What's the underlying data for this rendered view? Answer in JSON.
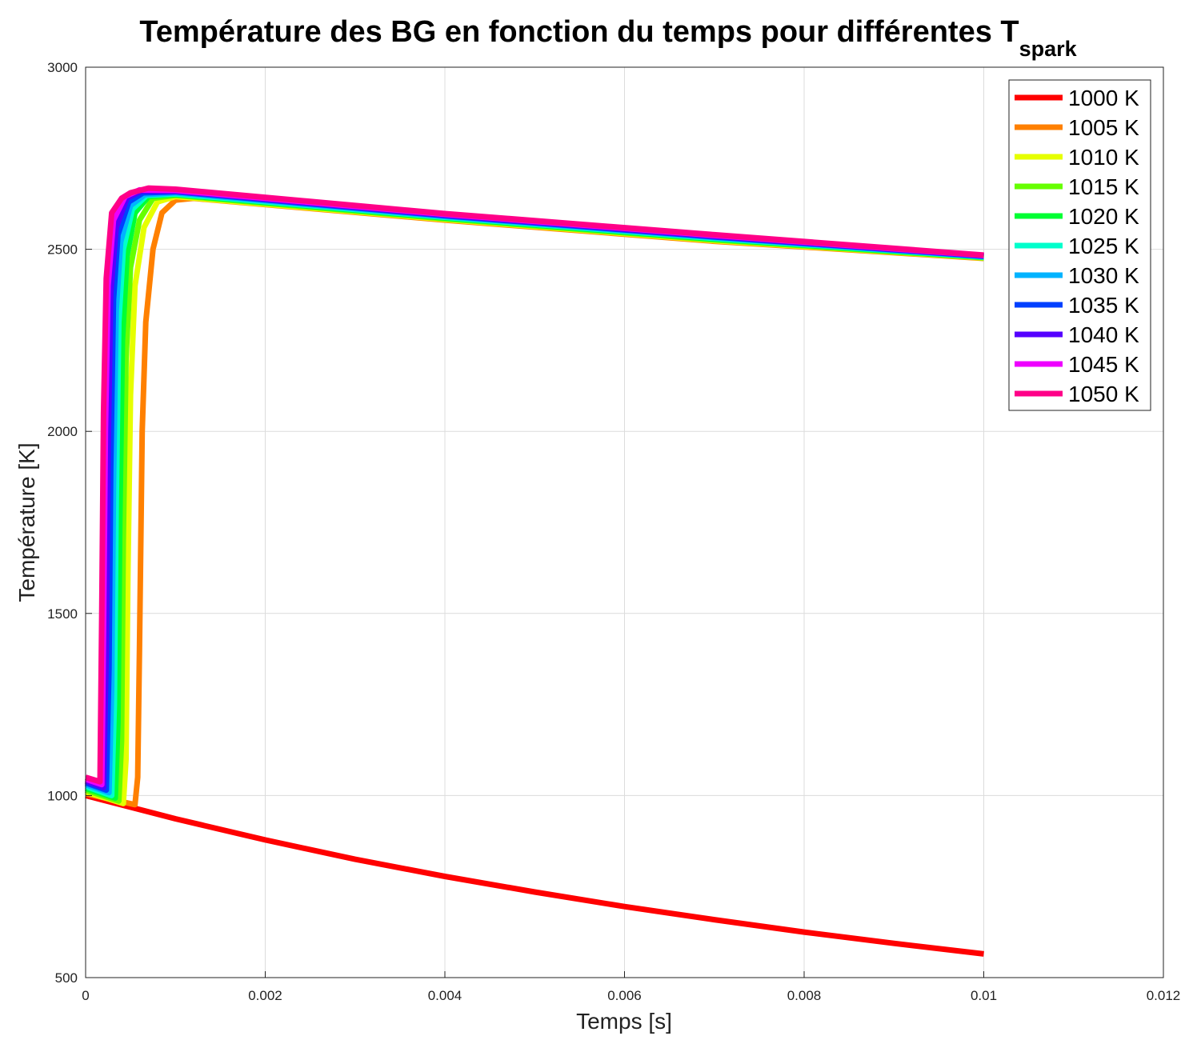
{
  "chart_data": {
    "type": "line",
    "title": "Température des BG en fonction du temps pour différentes T",
    "title_subscript": "spark",
    "xlabel": "Temps [s]",
    "ylabel": "Température [K]",
    "xlim": [
      0,
      0.012
    ],
    "ylim": [
      500,
      3000
    ],
    "xticks": [
      0,
      0.002,
      0.004,
      0.006,
      0.008,
      0.01,
      0.012
    ],
    "xtick_labels": [
      "0",
      "0.002",
      "0.004",
      "0.006",
      "0.008",
      "0.01",
      "0.012"
    ],
    "yticks": [
      500,
      1000,
      1500,
      2000,
      2500,
      3000
    ],
    "ytick_labels": [
      "500",
      "1000",
      "1500",
      "2000",
      "2500",
      "3000"
    ],
    "grid": true,
    "legend_position": "top-right",
    "series": [
      {
        "name": "1000 K",
        "color": "#ff0000",
        "points": [
          [
            0,
            1000
          ],
          [
            0.001,
            936
          ],
          [
            0.002,
            878
          ],
          [
            0.003,
            825
          ],
          [
            0.004,
            778
          ],
          [
            0.005,
            735
          ],
          [
            0.006,
            695
          ],
          [
            0.007,
            659
          ],
          [
            0.008,
            625
          ],
          [
            0.009,
            594
          ],
          [
            0.01,
            565
          ]
        ]
      },
      {
        "name": "1005 K",
        "color": "#ff8000",
        "points": [
          [
            0,
            1005
          ],
          [
            0.00055,
            975
          ],
          [
            0.00058,
            1050
          ],
          [
            0.0006,
            1400
          ],
          [
            0.00063,
            2000
          ],
          [
            0.00067,
            2300
          ],
          [
            0.00075,
            2500
          ],
          [
            0.00085,
            2600
          ],
          [
            0.001,
            2635
          ],
          [
            0.0012,
            2640
          ],
          [
            0.004,
            2580
          ],
          [
            0.007,
            2522
          ],
          [
            0.01,
            2475
          ]
        ]
      },
      {
        "name": "1010 K",
        "color": "#e6ff00",
        "points": [
          [
            0,
            1010
          ],
          [
            0.00042,
            978
          ],
          [
            0.00045,
            1100
          ],
          [
            0.00047,
            1600
          ],
          [
            0.0005,
            2100
          ],
          [
            0.00055,
            2400
          ],
          [
            0.00065,
            2560
          ],
          [
            0.0008,
            2630
          ],
          [
            0.001,
            2645
          ],
          [
            0.004,
            2582
          ],
          [
            0.007,
            2524
          ],
          [
            0.01,
            2476
          ]
        ]
      },
      {
        "name": "1015 K",
        "color": "#66ff00",
        "points": [
          [
            0,
            1015
          ],
          [
            0.00037,
            985
          ],
          [
            0.0004,
            1150
          ],
          [
            0.00042,
            1700
          ],
          [
            0.00045,
            2200
          ],
          [
            0.0005,
            2450
          ],
          [
            0.0006,
            2580
          ],
          [
            0.00075,
            2640
          ],
          [
            0.001,
            2648
          ],
          [
            0.004,
            2584
          ],
          [
            0.007,
            2526
          ],
          [
            0.01,
            2477
          ]
        ]
      },
      {
        "name": "1020 K",
        "color": "#00ff33",
        "points": [
          [
            0,
            1020
          ],
          [
            0.00033,
            993
          ],
          [
            0.00036,
            1200
          ],
          [
            0.00038,
            1750
          ],
          [
            0.00041,
            2250
          ],
          [
            0.00046,
            2480
          ],
          [
            0.00055,
            2600
          ],
          [
            0.0007,
            2645
          ],
          [
            0.001,
            2650
          ],
          [
            0.004,
            2586
          ],
          [
            0.007,
            2528
          ],
          [
            0.01,
            2478
          ]
        ]
      },
      {
        "name": "1025 K",
        "color": "#00ffcc",
        "points": [
          [
            0,
            1025
          ],
          [
            0.00029,
            1000
          ],
          [
            0.00032,
            1250
          ],
          [
            0.00034,
            1800
          ],
          [
            0.00037,
            2300
          ],
          [
            0.00042,
            2500
          ],
          [
            0.00052,
            2610
          ],
          [
            0.00068,
            2648
          ],
          [
            0.001,
            2652
          ],
          [
            0.004,
            2588
          ],
          [
            0.007,
            2530
          ],
          [
            0.01,
            2479
          ]
        ]
      },
      {
        "name": "1030 K",
        "color": "#00b3ff",
        "points": [
          [
            0,
            1030
          ],
          [
            0.00026,
            1008
          ],
          [
            0.00029,
            1300
          ],
          [
            0.00031,
            1850
          ],
          [
            0.00034,
            2330
          ],
          [
            0.00039,
            2520
          ],
          [
            0.0005,
            2620
          ],
          [
            0.00066,
            2650
          ],
          [
            0.001,
            2655
          ],
          [
            0.004,
            2590
          ],
          [
            0.007,
            2532
          ],
          [
            0.01,
            2480
          ]
        ]
      },
      {
        "name": "1035 K",
        "color": "#0040ff",
        "points": [
          [
            0,
            1035
          ],
          [
            0.00023,
            1015
          ],
          [
            0.00026,
            1350
          ],
          [
            0.00028,
            1900
          ],
          [
            0.00031,
            2360
          ],
          [
            0.00036,
            2540
          ],
          [
            0.00048,
            2630
          ],
          [
            0.00064,
            2655
          ],
          [
            0.001,
            2658
          ],
          [
            0.004,
            2592
          ],
          [
            0.007,
            2534
          ],
          [
            0.01,
            2481
          ]
        ]
      },
      {
        "name": "1040 K",
        "color": "#5500ff",
        "points": [
          [
            0,
            1040
          ],
          [
            0.0002,
            1022
          ],
          [
            0.00023,
            1400
          ],
          [
            0.00025,
            1950
          ],
          [
            0.00028,
            2380
          ],
          [
            0.00034,
            2560
          ],
          [
            0.00046,
            2640
          ],
          [
            0.00062,
            2660
          ],
          [
            0.001,
            2660
          ],
          [
            0.004,
            2594
          ],
          [
            0.007,
            2536
          ],
          [
            0.01,
            2482
          ]
        ]
      },
      {
        "name": "1045 K",
        "color": "#ee00ff",
        "points": [
          [
            0,
            1045
          ],
          [
            0.00018,
            1030
          ],
          [
            0.0002,
            1450
          ],
          [
            0.00022,
            2000
          ],
          [
            0.00025,
            2400
          ],
          [
            0.00031,
            2580
          ],
          [
            0.00044,
            2645
          ],
          [
            0.0006,
            2663
          ],
          [
            0.001,
            2662
          ],
          [
            0.004,
            2596
          ],
          [
            0.007,
            2538
          ],
          [
            0.01,
            2483
          ]
        ]
      },
      {
        "name": "1050 K",
        "color": "#ff0088",
        "points": [
          [
            0,
            1050
          ],
          [
            0.00016,
            1038
          ],
          [
            0.00018,
            1500
          ],
          [
            0.0002,
            2050
          ],
          [
            0.00023,
            2420
          ],
          [
            0.00029,
            2600
          ],
          [
            0.0004,
            2640
          ],
          [
            0.0005,
            2655
          ],
          [
            0.0007,
            2668
          ],
          [
            0.001,
            2665
          ],
          [
            0.004,
            2598
          ],
          [
            0.007,
            2540
          ],
          [
            0.01,
            2484
          ]
        ]
      }
    ]
  }
}
